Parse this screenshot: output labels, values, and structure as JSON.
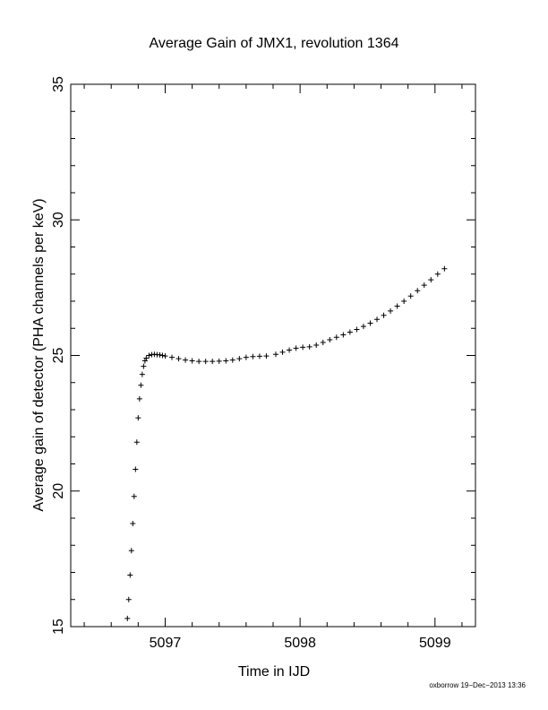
{
  "chart_data": {
    "type": "scatter",
    "title": "Average Gain of JMX1, revolution 1364",
    "xlabel": "Time in IJD",
    "ylabel": "Average gain of detector (PHA channels per keV)",
    "xlim": [
      5096.3,
      5099.3
    ],
    "ylim": [
      15,
      35
    ],
    "xticks": [
      5097,
      5098,
      5099
    ],
    "yticks": [
      15,
      20,
      25,
      30,
      35
    ],
    "marker": "+",
    "grid": false,
    "series": [
      {
        "x": [
          5096.72,
          5096.73,
          5096.74,
          5096.75,
          5096.76,
          5096.77,
          5096.78,
          5096.79,
          5096.8,
          5096.81,
          5096.82,
          5096.83,
          5096.84,
          5096.85,
          5096.86,
          5096.88,
          5096.9,
          5096.92,
          5096.94,
          5096.96,
          5096.98,
          5097.0,
          5097.05,
          5097.1,
          5097.15,
          5097.2,
          5097.25,
          5097.3,
          5097.35,
          5097.4,
          5097.45,
          5097.5,
          5097.55,
          5097.6,
          5097.65,
          5097.7,
          5097.75,
          5097.82,
          5097.87,
          5097.92,
          5097.97,
          5098.02,
          5098.07,
          5098.12,
          5098.17,
          5098.22,
          5098.27,
          5098.32,
          5098.37,
          5098.42,
          5098.47,
          5098.52,
          5098.57,
          5098.62,
          5098.67,
          5098.72,
          5098.77,
          5098.82,
          5098.87,
          5098.92,
          5098.97,
          5099.02,
          5099.07
        ],
        "y": [
          15.3,
          16.0,
          16.9,
          17.8,
          18.8,
          19.8,
          20.8,
          21.8,
          22.7,
          23.4,
          23.9,
          24.3,
          24.6,
          24.8,
          24.9,
          25.0,
          25.03,
          25.04,
          25.03,
          25.02,
          25.0,
          24.98,
          24.93,
          24.88,
          24.83,
          24.8,
          24.78,
          24.78,
          24.78,
          24.79,
          24.8,
          24.83,
          24.88,
          24.93,
          24.96,
          24.97,
          24.98,
          25.04,
          25.12,
          25.2,
          25.27,
          25.3,
          25.32,
          25.38,
          25.48,
          25.58,
          25.67,
          25.76,
          25.86,
          25.96,
          26.07,
          26.19,
          26.33,
          26.48,
          26.64,
          26.82,
          27.0,
          27.19,
          27.39,
          27.59,
          27.79,
          28.0,
          28.2
        ]
      }
    ]
  },
  "footer": {
    "credit": "oxborrow 19−Dec−2013 13:36"
  }
}
